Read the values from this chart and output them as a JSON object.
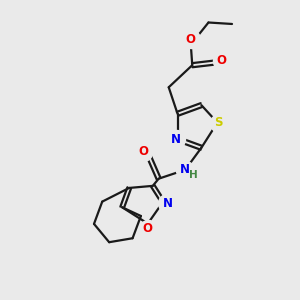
{
  "background_color": "#eaeaea",
  "bond_color": "#1a1a1a",
  "atom_colors": {
    "N": "#0000ee",
    "O": "#ee0000",
    "S": "#cccc00",
    "H": "#448844",
    "C": "#1a1a1a"
  },
  "bond_width": 1.6,
  "dbo": 0.08,
  "figsize": [
    3.0,
    3.0
  ],
  "dpi": 100
}
